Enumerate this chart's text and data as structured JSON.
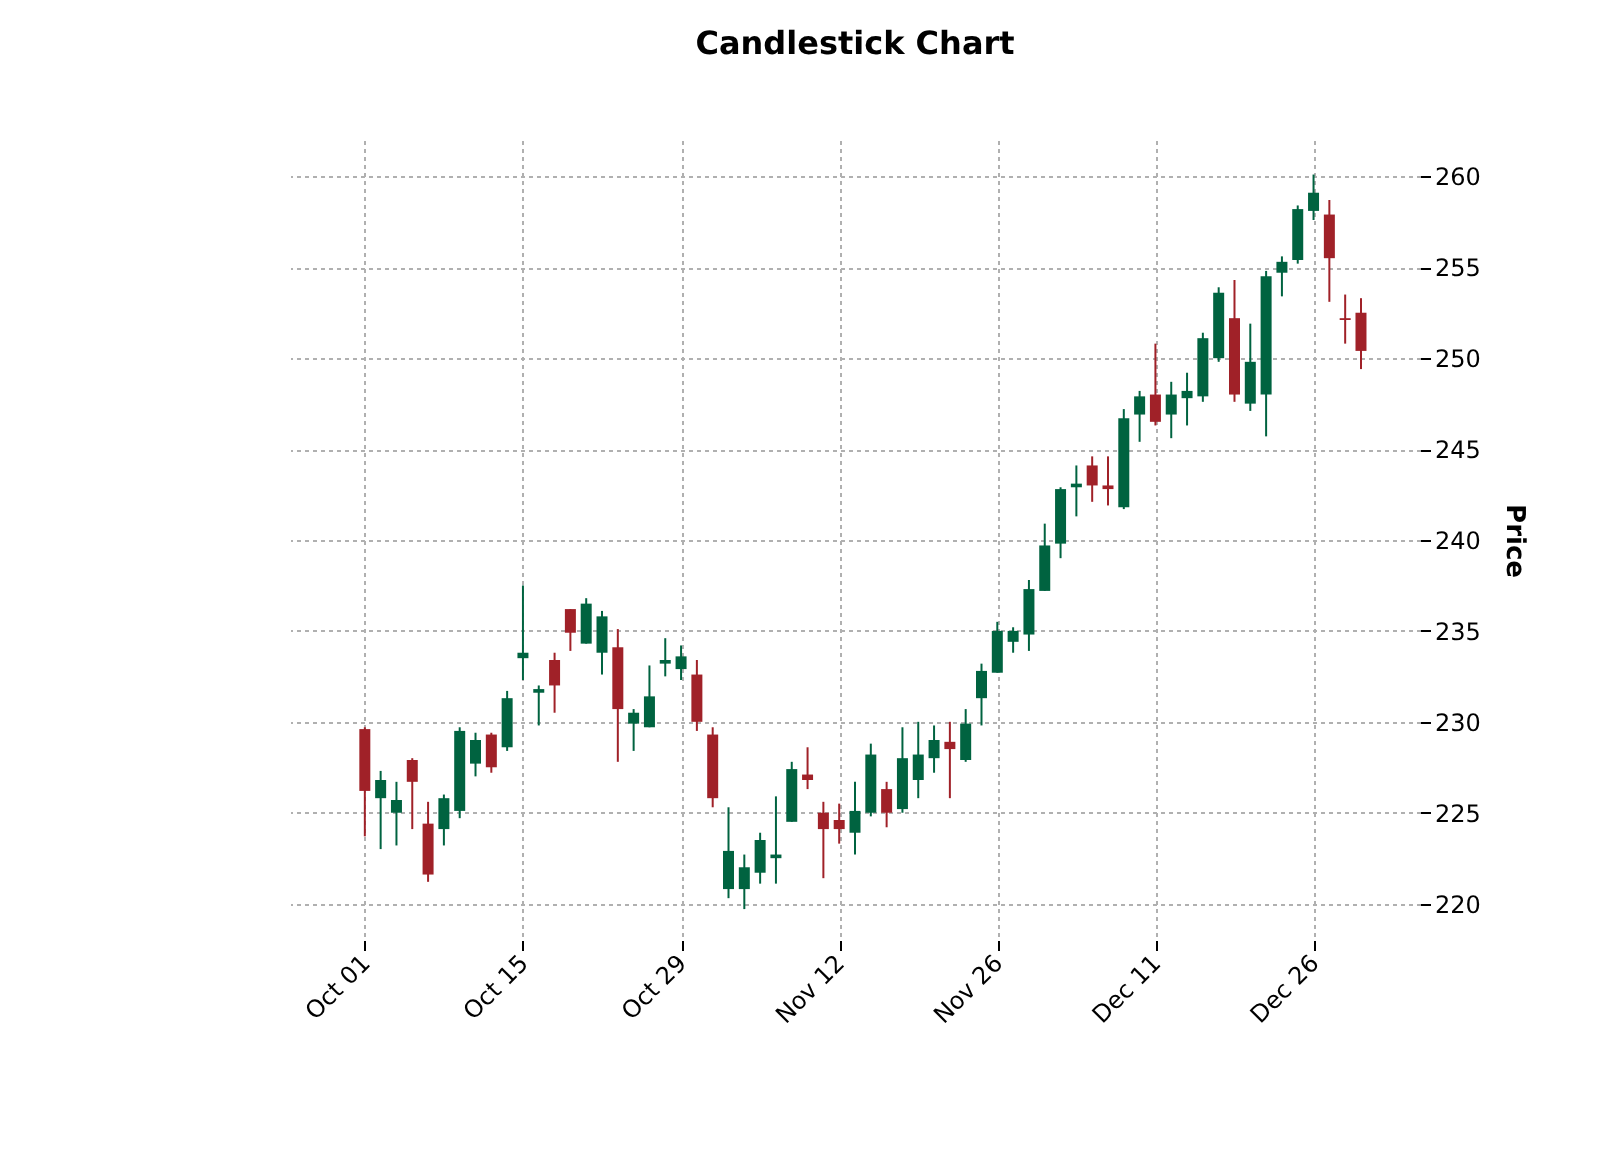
{
  "chart_data": {
    "type": "candlestick",
    "title": "Candlestick Chart",
    "ylabel": "Price",
    "categories": [
      "Oct 01",
      null,
      null,
      null,
      null,
      null,
      null,
      null,
      null,
      null,
      "Oct 15",
      null,
      null,
      null,
      null,
      null,
      null,
      null,
      null,
      null,
      "Oct 29",
      null,
      null,
      null,
      null,
      null,
      null,
      null,
      null,
      null,
      "Nov 12",
      null,
      null,
      null,
      null,
      null,
      null,
      null,
      null,
      null,
      "Nov 26",
      null,
      null,
      null,
      null,
      null,
      null,
      null,
      null,
      null,
      "Dec 11",
      null,
      null,
      null,
      null,
      null,
      null,
      null,
      null,
      null,
      "Dec 26",
      null,
      null,
      null
    ],
    "ohlc": [
      [
        229.6,
        229.7,
        223.7,
        226.2
      ],
      [
        225.8,
        227.3,
        223.0,
        226.8
      ],
      [
        225.0,
        226.7,
        223.2,
        225.7
      ],
      [
        227.9,
        228.0,
        224.1,
        226.7
      ],
      [
        224.4,
        225.6,
        221.2,
        221.6
      ],
      [
        224.1,
        226.0,
        223.2,
        225.8
      ],
      [
        225.1,
        229.7,
        224.7,
        229.5
      ],
      [
        227.7,
        229.4,
        227.0,
        229.0
      ],
      [
        229.3,
        229.4,
        227.2,
        227.5
      ],
      [
        228.6,
        231.7,
        228.4,
        231.3
      ],
      [
        233.5,
        237.5,
        232.3,
        233.8
      ],
      [
        231.6,
        232.0,
        229.8,
        231.8
      ],
      [
        233.4,
        233.8,
        230.5,
        232.0
      ],
      [
        236.2,
        236.2,
        233.9,
        234.9
      ],
      [
        234.3,
        236.8,
        234.3,
        236.5
      ],
      [
        233.8,
        236.1,
        232.6,
        235.8
      ],
      [
        234.1,
        235.1,
        227.8,
        230.7
      ],
      [
        229.9,
        230.7,
        228.4,
        230.5
      ],
      [
        229.7,
        233.1,
        229.7,
        231.4
      ],
      [
        233.2,
        234.6,
        232.5,
        233.4
      ],
      [
        232.9,
        234.2,
        232.3,
        233.6
      ],
      [
        232.6,
        233.4,
        229.5,
        230.0
      ],
      [
        229.3,
        229.7,
        225.3,
        225.8
      ],
      [
        220.8,
        225.3,
        220.3,
        222.9
      ],
      [
        220.8,
        222.7,
        219.7,
        222.0
      ],
      [
        221.7,
        223.9,
        221.1,
        223.5
      ],
      [
        222.5,
        225.9,
        221.1,
        222.7
      ],
      [
        224.5,
        227.8,
        224.5,
        227.4
      ],
      [
        227.1,
        228.6,
        226.3,
        226.8
      ],
      [
        225.0,
        225.6,
        221.4,
        224.1
      ],
      [
        224.6,
        225.5,
        223.3,
        224.1
      ],
      [
        223.9,
        226.7,
        222.7,
        225.1
      ],
      [
        225.0,
        228.8,
        224.8,
        228.2
      ],
      [
        226.3,
        226.7,
        224.2,
        225.0
      ],
      [
        225.2,
        229.7,
        225.0,
        228.0
      ],
      [
        226.8,
        230.0,
        225.8,
        228.2
      ],
      [
        228.0,
        229.8,
        227.2,
        229.0
      ],
      [
        228.9,
        230.0,
        225.8,
        228.5
      ],
      [
        227.9,
        230.7,
        227.8,
        229.9
      ],
      [
        231.3,
        233.2,
        229.8,
        232.8
      ],
      [
        232.7,
        235.5,
        232.7,
        235.0
      ],
      [
        234.4,
        235.2,
        233.8,
        235.0
      ],
      [
        234.8,
        237.8,
        233.9,
        237.3
      ],
      [
        237.2,
        240.9,
        237.2,
        239.7
      ],
      [
        239.8,
        242.9,
        239.0,
        242.8
      ],
      [
        242.9,
        244.1,
        241.3,
        243.1
      ],
      [
        244.1,
        244.6,
        242.1,
        243.0
      ],
      [
        243.0,
        244.6,
        241.9,
        242.8
      ],
      [
        241.8,
        247.2,
        241.7,
        246.7
      ],
      [
        246.9,
        248.2,
        245.4,
        247.9
      ],
      [
        248.0,
        250.8,
        246.3,
        246.5
      ],
      [
        246.9,
        248.7,
        245.6,
        248.0
      ],
      [
        247.8,
        249.2,
        246.3,
        248.2
      ],
      [
        247.9,
        251.4,
        247.6,
        251.1
      ],
      [
        250.0,
        253.9,
        249.8,
        253.6
      ],
      [
        252.2,
        254.3,
        247.6,
        248.0
      ],
      [
        247.5,
        251.9,
        247.1,
        249.8
      ],
      [
        248.0,
        254.8,
        245.7,
        254.5
      ],
      [
        254.7,
        255.6,
        253.4,
        255.3
      ],
      [
        255.4,
        258.4,
        255.2,
        258.2
      ],
      [
        258.1,
        260.1,
        257.6,
        259.1
      ],
      [
        257.9,
        258.7,
        253.1,
        255.5
      ],
      [
        252.2,
        253.5,
        250.8,
        252.1
      ],
      [
        252.5,
        253.3,
        249.4,
        250.4
      ]
    ],
    "colors": [
      "#a02128",
      "#006340",
      "#006340",
      "#a02128",
      "#a02128",
      "#006340",
      "#006340",
      "#006340",
      "#a02128",
      "#006340",
      "#006340",
      "#006340",
      "#a02128",
      "#a02128",
      "#006340",
      "#006340",
      "#a02128",
      "#006340",
      "#006340",
      "#006340",
      "#006340",
      "#a02128",
      "#a02128",
      "#006340",
      "#006340",
      "#006340",
      "#006340",
      "#006340",
      "#a02128",
      "#a02128",
      "#a02128",
      "#006340",
      "#006340",
      "#a02128",
      "#006340",
      "#006340",
      "#006340",
      "#a02128",
      "#006340",
      "#006340",
      "#006340",
      "#006340",
      "#006340",
      "#006340",
      "#006340",
      "#006340",
      "#a02128",
      "#a02128",
      "#006340",
      "#006340",
      "#a02128",
      "#006340",
      "#006340",
      "#006340",
      "#006340",
      "#a02128",
      "#006340",
      "#006340",
      "#006340",
      "#006340",
      "#006340",
      "#a02128",
      "#a02128",
      "#a02128"
    ],
    "ylim": [
      218,
      262
    ],
    "yticks": [
      220,
      225,
      230,
      235,
      240,
      245,
      250,
      255,
      260
    ],
    "grid": true
  }
}
